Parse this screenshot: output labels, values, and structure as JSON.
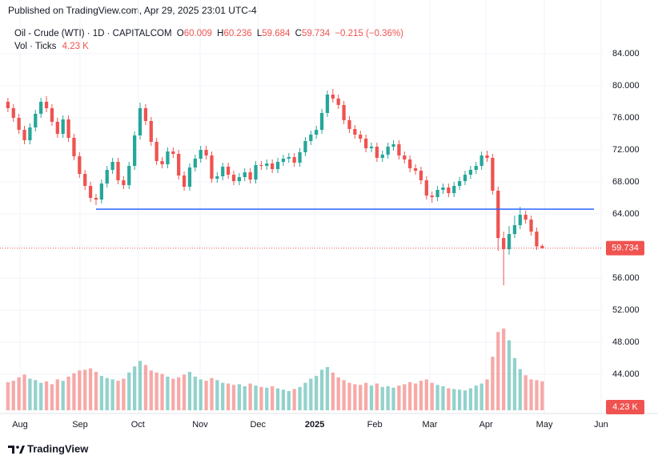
{
  "header": {
    "published": "Published on TradingView.com, Apr 29, 2025 23:01 UTC-4"
  },
  "chart_data": {
    "type": "candlestick",
    "symbol": "Oil - Crude (WTI) · 1D · CAPITALCOM",
    "ohlc_labels": [
      "O",
      "H",
      "L",
      "C"
    ],
    "change_label": "−0.215 (−0.36%)",
    "volume_title": "Vol · Ticks",
    "volume_last_label": "4.23 K",
    "up_color": "#26a69a",
    "down_color": "#ef5350",
    "open": [
      78.0,
      77.2,
      76.0,
      74.5,
      73.2,
      74.8,
      76.5,
      78.0,
      77.2,
      75.5,
      74.0,
      75.8,
      73.5,
      71.2,
      69.0,
      67.5,
      66.0,
      65.8,
      67.8,
      69.5,
      70.5,
      68.2,
      67.6,
      70.0,
      73.8,
      77.2,
      75.6,
      73.0,
      70.6,
      70.2,
      71.8,
      71.5,
      68.8,
      67.4,
      69.8,
      70.9,
      72.0,
      71.3,
      68.4,
      68.7,
      69.9,
      68.9,
      68.1,
      68.6,
      69.2,
      68.3,
      70.1,
      70.0,
      70.3,
      69.6,
      70.5,
      70.9,
      71.1,
      70.4,
      71.7,
      73.1,
      73.9,
      74.5,
      76.6,
      78.9,
      78.4,
      77.6,
      75.7,
      74.6,
      73.9,
      73.4,
      72.2,
      72.4,
      71.0,
      71.4,
      72.4,
      72.7,
      71.3,
      70.8,
      69.7,
      69.4,
      68.2,
      66.3,
      66.1,
      67.0,
      67.3,
      66.6,
      67.5,
      68.1,
      68.9,
      69.5,
      70.0,
      71.3,
      71.0,
      66.9,
      61.0,
      59.6,
      61.5,
      62.6,
      63.9,
      63.3,
      61.8,
      60.009
    ],
    "high": [
      78.5,
      77.7,
      76.5,
      75.0,
      75.3,
      77.0,
      78.5,
      78.7,
      77.7,
      76.0,
      76.3,
      76.3,
      74.0,
      71.7,
      69.5,
      68.0,
      66.5,
      68.3,
      70.0,
      71.0,
      71.0,
      68.7,
      70.5,
      74.3,
      77.9,
      77.7,
      76.1,
      73.5,
      71.1,
      72.3,
      72.3,
      72.0,
      69.3,
      70.3,
      71.4,
      72.5,
      72.5,
      71.8,
      69.2,
      70.4,
      70.4,
      69.4,
      69.1,
      69.7,
      69.7,
      70.6,
      70.6,
      70.8,
      70.8,
      71.0,
      71.4,
      71.6,
      71.6,
      72.2,
      73.6,
      74.4,
      75.0,
      77.1,
      79.4,
      79.6,
      78.9,
      78.1,
      76.2,
      75.1,
      74.4,
      73.9,
      72.9,
      72.9,
      71.9,
      72.9,
      73.2,
      73.2,
      71.8,
      71.3,
      70.2,
      69.9,
      68.7,
      66.8,
      67.5,
      67.8,
      67.8,
      68.0,
      68.6,
      69.4,
      70.0,
      70.5,
      71.8,
      71.9,
      71.5,
      67.4,
      61.8,
      62.5,
      63.8,
      64.9,
      64.4,
      63.8,
      62.3,
      60.236
    ],
    "low": [
      76.7,
      75.5,
      74.0,
      72.7,
      72.7,
      74.3,
      76.0,
      76.7,
      75.0,
      73.5,
      73.5,
      73.0,
      70.7,
      68.5,
      67.0,
      65.5,
      65.1,
      65.3,
      67.3,
      69.0,
      67.7,
      67.1,
      67.1,
      69.5,
      73.3,
      75.1,
      72.5,
      70.1,
      69.7,
      69.7,
      71.0,
      68.3,
      66.9,
      66.9,
      69.3,
      70.4,
      70.8,
      67.9,
      67.9,
      68.2,
      68.4,
      67.6,
      67.6,
      68.1,
      67.8,
      67.8,
      69.5,
      69.5,
      69.1,
      69.1,
      70.0,
      70.4,
      69.9,
      69.9,
      71.2,
      72.6,
      73.4,
      74.0,
      76.1,
      77.9,
      77.1,
      75.2,
      74.1,
      73.4,
      72.9,
      71.7,
      71.7,
      70.5,
      70.5,
      70.9,
      71.9,
      70.8,
      70.3,
      69.2,
      68.9,
      67.7,
      65.8,
      65.4,
      65.6,
      66.5,
      66.1,
      66.1,
      67.0,
      67.6,
      68.4,
      69.0,
      69.5,
      70.5,
      66.4,
      59.4,
      55.1,
      58.9,
      61.0,
      62.1,
      62.8,
      61.3,
      59.5,
      59.684
    ],
    "close": [
      77.2,
      76.0,
      74.5,
      73.2,
      74.8,
      76.5,
      78.0,
      77.2,
      75.5,
      74.0,
      75.8,
      73.5,
      71.2,
      69.0,
      67.5,
      66.0,
      65.8,
      67.8,
      69.5,
      70.5,
      68.2,
      67.6,
      70.0,
      73.8,
      77.2,
      75.6,
      73.0,
      70.6,
      70.2,
      71.8,
      71.5,
      68.8,
      67.4,
      69.8,
      70.9,
      72.0,
      71.3,
      68.4,
      68.7,
      69.9,
      68.9,
      68.1,
      68.6,
      69.2,
      68.3,
      70.1,
      70.0,
      70.3,
      69.6,
      70.5,
      70.9,
      71.1,
      70.4,
      71.7,
      73.1,
      73.9,
      74.5,
      76.6,
      78.9,
      78.4,
      77.6,
      75.7,
      74.6,
      73.9,
      73.4,
      72.2,
      72.4,
      71.0,
      71.4,
      72.4,
      72.7,
      71.3,
      70.8,
      69.7,
      69.4,
      68.2,
      66.3,
      66.1,
      67.0,
      67.3,
      66.6,
      67.5,
      68.1,
      68.9,
      69.5,
      70.0,
      71.3,
      71.0,
      66.9,
      61.0,
      59.6,
      61.5,
      62.6,
      63.9,
      63.3,
      61.8,
      59.949,
      59.734
    ],
    "volume": [
      4.1,
      4.3,
      4.8,
      5.2,
      4.6,
      4.4,
      4.0,
      4.2,
      3.8,
      4.5,
      4.3,
      4.9,
      5.4,
      5.8,
      5.9,
      6.1,
      5.6,
      5.0,
      4.7,
      4.5,
      4.3,
      4.6,
      5.5,
      6.4,
      7.2,
      6.6,
      5.8,
      5.5,
      5.3,
      4.9,
      4.6,
      4.8,
      5.2,
      5.6,
      4.9,
      4.5,
      4.3,
      4.7,
      4.4,
      4.0,
      3.9,
      3.7,
      3.8,
      3.5,
      3.9,
      3.6,
      3.4,
      3.3,
      3.5,
      3.2,
      3.0,
      2.8,
      3.1,
      3.4,
      4.0,
      4.6,
      5.0,
      5.9,
      6.3,
      5.5,
      4.8,
      4.4,
      4.0,
      3.8,
      3.7,
      4.0,
      3.6,
      3.9,
      3.4,
      3.5,
      3.3,
      3.6,
      3.8,
      4.1,
      3.9,
      4.3,
      4.5,
      4.0,
      3.7,
      3.5,
      3.2,
      3.1,
      3.0,
      2.9,
      3.2,
      3.6,
      3.9,
      4.5,
      7.8,
      11.4,
      11.9,
      10.2,
      7.6,
      6.0,
      5.1,
      4.5,
      4.4,
      4.23
    ],
    "vlim": [
      0,
      14
    ],
    "ylim": [
      39.2,
      87.7
    ],
    "yticks": [
      {
        "value": 44,
        "label": "44.000"
      },
      {
        "value": 48,
        "label": "48.000"
      },
      {
        "value": 52,
        "label": "52.000"
      },
      {
        "value": 56,
        "label": "56.000"
      },
      {
        "value": 60,
        "label": "60.000"
      },
      {
        "value": 64,
        "label": "64.000"
      },
      {
        "value": 68,
        "label": "68.000"
      },
      {
        "value": 72,
        "label": "72.000"
      },
      {
        "value": 76,
        "label": "76.000"
      },
      {
        "value": 80,
        "label": "80.000"
      },
      {
        "value": 84,
        "label": "84.000"
      }
    ],
    "xlim": [
      -1,
      108
    ],
    "xticks": [
      {
        "value": 2.2,
        "label": "Aug"
      },
      {
        "value": 13.1,
        "label": "Sep"
      },
      {
        "value": 23.6,
        "label": "Oct"
      },
      {
        "value": 34.9,
        "label": "Nov"
      },
      {
        "value": 45.4,
        "label": "Dec"
      },
      {
        "value": 55.7,
        "label": "2025",
        "bold": true
      },
      {
        "value": 66.6,
        "label": "Feb"
      },
      {
        "value": 76.6,
        "label": "Mar"
      },
      {
        "value": 86.8,
        "label": "Apr"
      },
      {
        "value": 97.4,
        "label": "May"
      },
      {
        "value": 107.7,
        "label": "Jun"
      }
    ],
    "hline": {
      "value": 64.6,
      "x_start": 16.0,
      "x_end": 106.4,
      "color": "#2962ff"
    },
    "last_price_line": true,
    "grid": true
  },
  "footer": {
    "brand": "TradingView"
  }
}
